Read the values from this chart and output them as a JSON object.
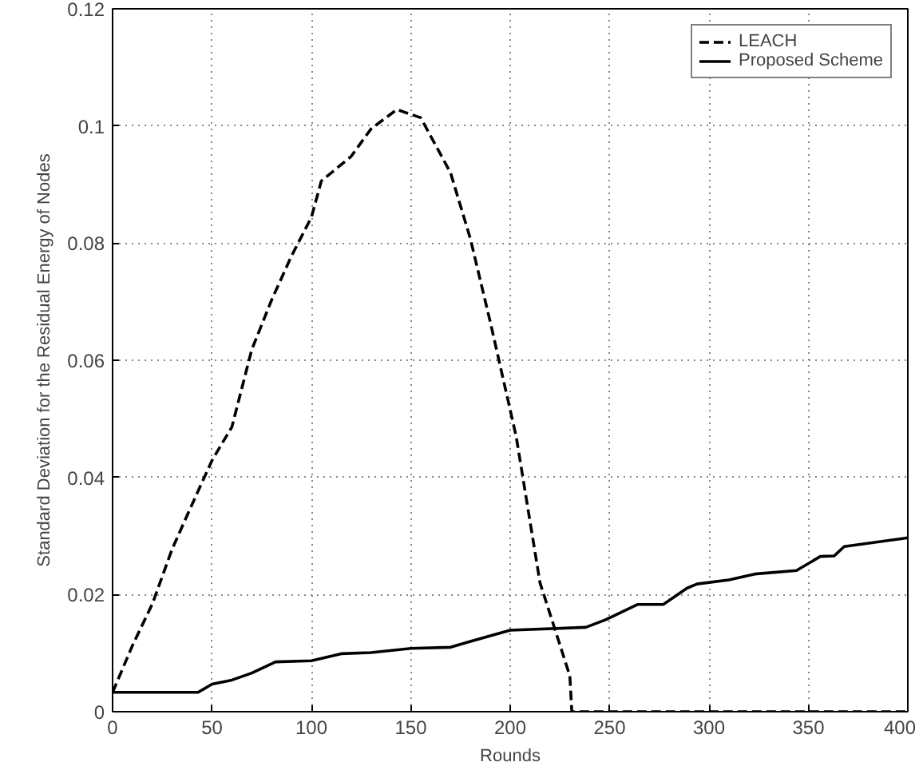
{
  "chart_data": {
    "type": "line",
    "xlabel": "Rounds",
    "ylabel": "Standard Deviation for the Residual Energy of Nodes",
    "xlim": [
      0,
      400
    ],
    "ylim": [
      0,
      0.12
    ],
    "xticks": [
      0,
      50,
      100,
      150,
      200,
      250,
      300,
      350,
      400
    ],
    "yticks": [
      0,
      0.02,
      0.04,
      0.06,
      0.08,
      0.1,
      0.12
    ],
    "grid": true,
    "legend": "top right",
    "marker": "none",
    "series": [
      {
        "name": "LEACH",
        "color": "#000000",
        "line_style": "dashed",
        "x": [
          0,
          10,
          20,
          30,
          40,
          50,
          60,
          70,
          80,
          90,
          100,
          105,
          120,
          130,
          143,
          155,
          170,
          180,
          190,
          203,
          215,
          222,
          230,
          231,
          400
        ],
        "values": [
          0.0033,
          0.0113,
          0.0184,
          0.0278,
          0.0354,
          0.0429,
          0.0486,
          0.0618,
          0.0703,
          0.0778,
          0.0844,
          0.0906,
          0.0948,
          0.0995,
          0.1028,
          0.1014,
          0.092,
          0.0807,
          0.0665,
          0.047,
          0.022,
          0.0146,
          0.0061,
          0,
          0
        ]
      },
      {
        "name": "Proposed Scheme",
        "color": "#000000",
        "line_style": "solid",
        "x": [
          0,
          43,
          50,
          60,
          70,
          82,
          100,
          115,
          130,
          150,
          170,
          180,
          200,
          238,
          248,
          264,
          277,
          289,
          294,
          310,
          323,
          344,
          356,
          363,
          368,
          398,
          400
        ],
        "values": [
          0.0033,
          0.0033,
          0.0047,
          0.0054,
          0.0066,
          0.0085,
          0.0087,
          0.0099,
          0.0101,
          0.0108,
          0.011,
          0.012,
          0.0139,
          0.0144,
          0.0157,
          0.0183,
          0.0183,
          0.0211,
          0.0218,
          0.0225,
          0.0235,
          0.0241,
          0.0265,
          0.0266,
          0.0282,
          0.0296,
          0.0297
        ]
      }
    ]
  }
}
